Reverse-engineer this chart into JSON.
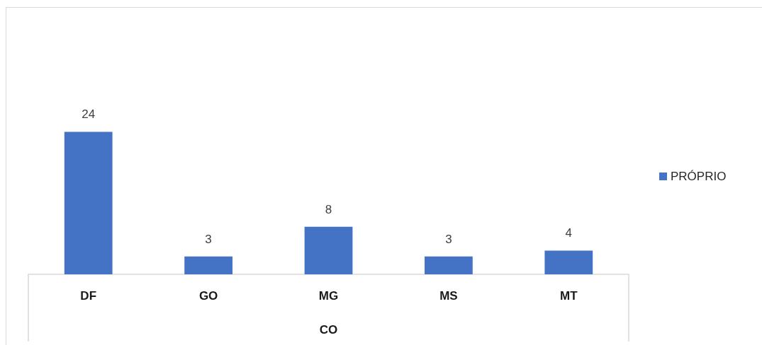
{
  "chart_data": {
    "type": "bar",
    "categories": [
      "DF",
      "GO",
      "MG",
      "MS",
      "MT"
    ],
    "series": [
      {
        "name": "PRÓPRIO",
        "color": "#4472c4",
        "values": [
          24,
          3,
          8,
          3,
          4
        ]
      }
    ],
    "xlabel": "CO",
    "data_labels": true,
    "legend": "right",
    "tick_labels": "x"
  }
}
